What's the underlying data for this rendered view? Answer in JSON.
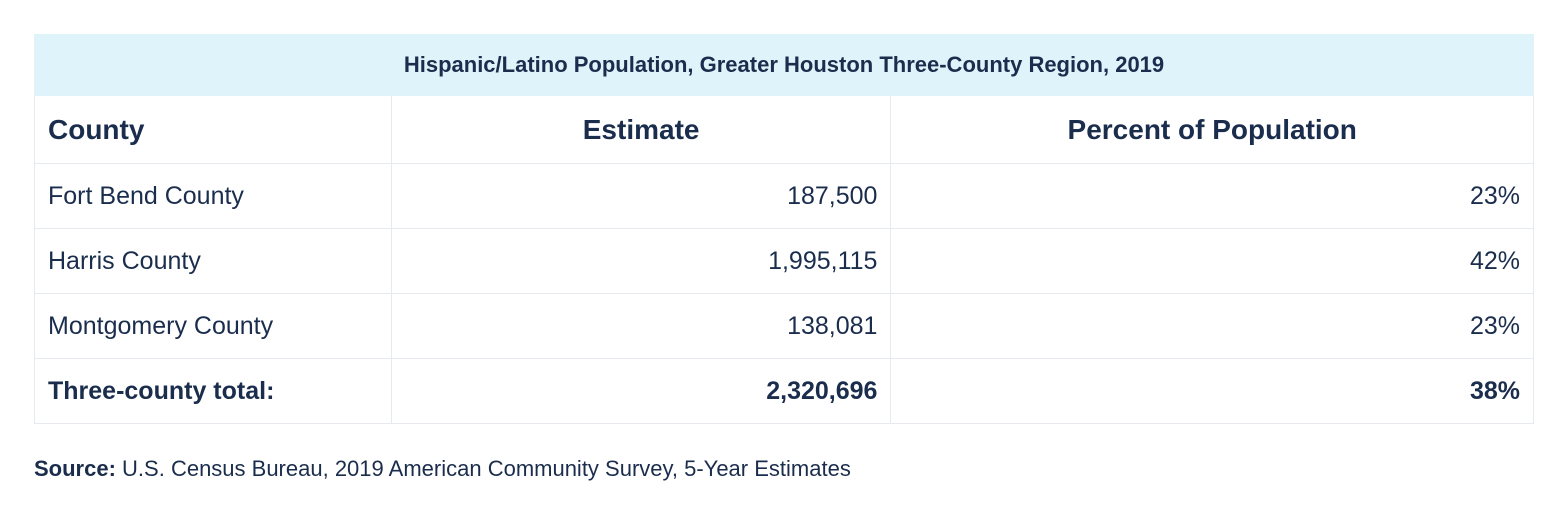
{
  "table": {
    "title": "Hispanic/Latino Population, Greater Houston Three-County Region, 2019",
    "header": [
      "County",
      "Estimate",
      "Percent of Population"
    ],
    "rows": [
      [
        "Fort Bend County",
        "187,500",
        "23%"
      ],
      [
        "Harris County",
        "1,995,115",
        "42%"
      ],
      [
        "Montgomery County",
        "138,081",
        "23%"
      ]
    ],
    "total": [
      "Three-county total:",
      "2,320,696",
      "38%"
    ]
  },
  "source": {
    "label": "Source:",
    "text": "U.S. Census Bureau, 2019 American Community Survey, 5-Year Estimates"
  }
}
